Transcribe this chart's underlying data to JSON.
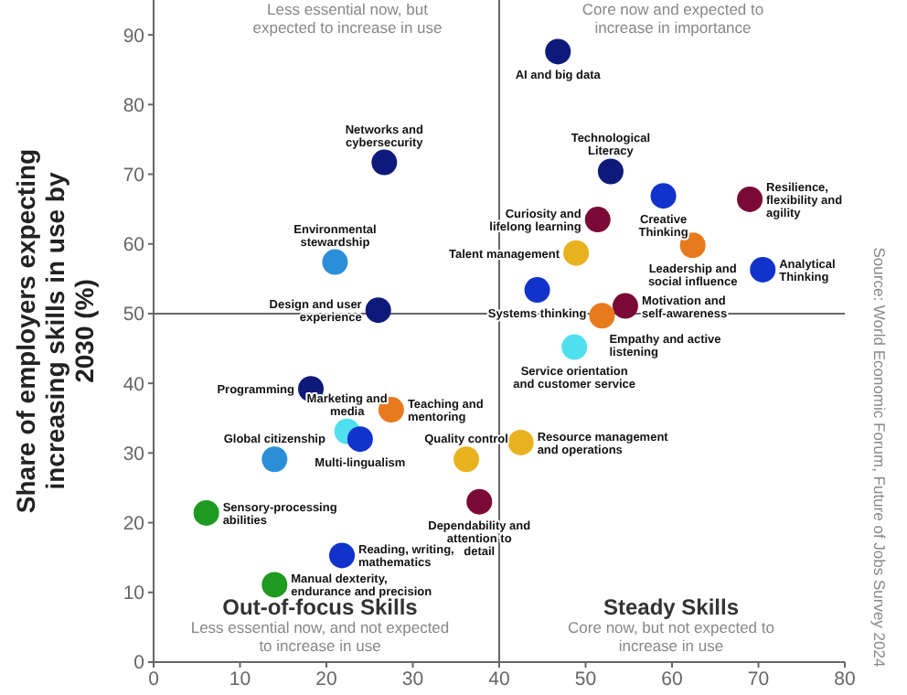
{
  "chart_data": {
    "type": "scatter",
    "ylabel": "Share of employers expecting increasing skills in use by 2030 (%)",
    "x": [
      26.7,
      21.0,
      26.0,
      18.2,
      22.4,
      23.9,
      27.5,
      14.0,
      6.1,
      21.8,
      14.0,
      36.2,
      37.7,
      42.5,
      48.7,
      46.8,
      52.9,
      59.0,
      69.0,
      51.4,
      48.9,
      62.4,
      70.5,
      44.4,
      54.6,
      51.9
    ],
    "values": [
      71.7,
      57.4,
      50.5,
      39.2,
      33.1,
      32.0,
      36.2,
      29.1,
      21.4,
      15.3,
      11.1,
      29.1,
      23.0,
      31.5,
      45.2,
      87.6,
      70.4,
      66.9,
      66.4,
      63.5,
      58.7,
      59.8,
      56.3,
      53.4,
      51.1,
      49.7
    ],
    "colors": [
      "#0d1a7a",
      "#2a8fd8",
      "#0d1a7a",
      "#0d1a7a",
      "#4fe0f0",
      "#1133cc",
      "#e87a1e",
      "#2a8fd8",
      "#1e9a1e",
      "#1133cc",
      "#1e9a1e",
      "#e8b21e",
      "#7a0a35",
      "#e8b21e",
      "#4fe0f0",
      "#0d1a7a",
      "#0d1a7a",
      "#1133cc",
      "#7a0a35",
      "#7a0a35",
      "#e8b21e",
      "#e87a1e",
      "#1133cc",
      "#1133cc",
      "#7a0a35",
      "#e87a1e"
    ],
    "marker": "circle",
    "grid": false,
    "xlim": [
      0,
      80
    ],
    "xticks": [
      0,
      10,
      20,
      30,
      40,
      50,
      60,
      70,
      80
    ],
    "ylim": [
      0,
      95
    ],
    "yticks": [
      0,
      10,
      20,
      30,
      40,
      50,
      60,
      70,
      80,
      90
    ],
    "ref_lines": [
      {
        "axis": "x",
        "value": 40,
        "color": "#666666"
      },
      {
        "axis": "y",
        "value": 50,
        "color": "#666666"
      }
    ],
    "annotations": [
      {
        "text": "Networks and cybersecurity",
        "x": 26.7,
        "y": 71.7
      },
      {
        "text": "Environmental stewardship",
        "x": 21.0,
        "y": 57.4
      },
      {
        "text": "Design and user experience",
        "x": 26.0,
        "y": 50.5
      },
      {
        "text": "Programming",
        "x": 18.2,
        "y": 39.2
      },
      {
        "text": "Marketing and media",
        "x": 22.4,
        "y": 33.1
      },
      {
        "text": "Multi-lingualism",
        "x": 23.9,
        "y": 32.0
      },
      {
        "text": "Teaching and mentoring",
        "x": 27.5,
        "y": 36.2
      },
      {
        "text": "Global citizenship",
        "x": 14.0,
        "y": 29.1
      },
      {
        "text": "Sensory-processing abilities",
        "x": 6.1,
        "y": 21.4
      },
      {
        "text": "Reading, writing, mathematics",
        "x": 21.8,
        "y": 15.3
      },
      {
        "text": "Manual dexterity, endurance and precision",
        "x": 14.0,
        "y": 11.1
      },
      {
        "text": "Quality control",
        "x": 36.2,
        "y": 29.1
      },
      {
        "text": "Dependability and attention to detail",
        "x": 37.7,
        "y": 23.0
      },
      {
        "text": "Resource management and operations",
        "x": 42.5,
        "y": 31.5
      },
      {
        "text": "Service orientation and customer service",
        "x": 48.7,
        "y": 45.2
      },
      {
        "text": "AI and big data",
        "x": 46.8,
        "y": 87.6
      },
      {
        "text": "Technological Literacy",
        "x": 52.9,
        "y": 70.4
      },
      {
        "text": "Creative Thinking",
        "x": 59.0,
        "y": 66.9
      },
      {
        "text": "Resilience, flexibility and agility",
        "x": 69.0,
        "y": 66.4
      },
      {
        "text": "Curiosity and lifelong learning",
        "x": 51.4,
        "y": 63.5
      },
      {
        "text": "Talent management",
        "x": 48.9,
        "y": 58.7
      },
      {
        "text": "Leadership and social influence",
        "x": 62.4,
        "y": 59.8
      },
      {
        "text": "Analytical Thinking",
        "x": 70.5,
        "y": 56.3
      },
      {
        "text": "Systems thinking",
        "x": 44.4,
        "y": 53.4
      },
      {
        "text": "Motivation and self-awareness",
        "x": 54.6,
        "y": 51.1
      },
      {
        "text": "Empathy and active listening",
        "x": 51.9,
        "y": 49.7
      },
      "Less essential now, but expected to increase in use",
      "Core now and expected to increase in importance",
      "Out-of-focus Skills",
      "Less essential now, and not expected to increase in use",
      "Steady Skills",
      "Core now, but not expected to increase in use",
      "Source: World Economic Forum, Future of Jobs Survey 2024"
    ]
  }
}
